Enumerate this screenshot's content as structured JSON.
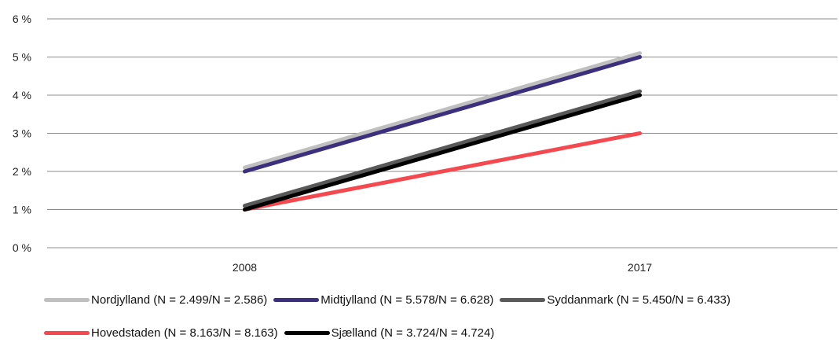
{
  "chart_data": {
    "type": "line",
    "title": "",
    "xlabel": "",
    "ylabel": "",
    "categories": [
      "2008",
      "2017"
    ],
    "y_ticks": [
      "0 %",
      "1 %",
      "2 %",
      "3 %",
      "4 %",
      "5 %",
      "6 %"
    ],
    "ylim": [
      0,
      6
    ],
    "grid": true,
    "legend_position": "bottom",
    "series": [
      {
        "name": "Nordjylland (N = 2.499/N = 2.586)",
        "values": [
          2.1,
          5.1
        ],
        "color": "#bfbfbf"
      },
      {
        "name": "Midtjylland (N = 5.578/N = 6.628)",
        "values": [
          2.0,
          5.0
        ],
        "color": "#3b2f7e"
      },
      {
        "name": "Syddanmark (N = 5.450/N = 6.433)",
        "values": [
          1.1,
          4.1
        ],
        "color": "#595959"
      },
      {
        "name": "Hovedstaden (N = 8.163/N = 8.163)",
        "values": [
          1.0,
          3.0
        ],
        "color": "#f4494f"
      },
      {
        "name": "Sjælland (N = 3.724/N = 4.724)",
        "values": [
          1.0,
          4.0
        ],
        "color": "#000000"
      }
    ]
  }
}
